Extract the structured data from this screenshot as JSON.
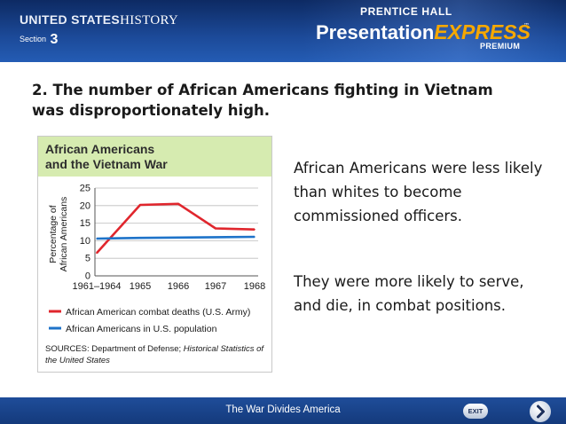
{
  "header": {
    "brand_part1": "UNITED STATES",
    "brand_part2": "HISTORY",
    "section_label": "Section",
    "section_number": "3",
    "publisher": "PRENTICE HALL",
    "product_main": "Presentation",
    "product_express": "EXPRESS",
    "trademark": "™",
    "premium": "PREMIUM"
  },
  "slide": {
    "title": "2. The number of African Americans fighting in Vietnam was disproportionately high.",
    "paragraph1": "African Americans were less likely than whites to become commissioned officers.",
    "paragraph2": "They were more likely to serve, and die, in combat positions."
  },
  "footer": {
    "title": "The War Divides America",
    "exit_label": "EXIT",
    "next_icon": "chevron-right-icon"
  },
  "chart_data": {
    "type": "line",
    "title": "African Americans and the Vietnam War",
    "title_lines": [
      "African Americans",
      "and the Vietnam War"
    ],
    "ylabel": "Percentage of African Americans",
    "ylabel_lines": [
      "Percentage of",
      "African Americans"
    ],
    "xlabel": "",
    "categories": [
      "1961–1964",
      "1965",
      "1966",
      "1967",
      "1968"
    ],
    "yticks": [
      0,
      5,
      10,
      15,
      20,
      25
    ],
    "ylim": [
      0,
      25
    ],
    "series": [
      {
        "name": "African American combat deaths (U.S. Army)",
        "color": "#e0262d",
        "values": [
          6.5,
          20.2,
          20.5,
          13.5,
          13.2
        ]
      },
      {
        "name": "African Americans in U.S. population",
        "color": "#1e73c9",
        "values": [
          10.6,
          10.8,
          10.9,
          11.0,
          11.1
        ]
      }
    ],
    "grid": "horizontal",
    "source_label": "SOURCES:",
    "source_plain": "Department of Defense;",
    "source_italic": "Historical Statistics of the United States",
    "colors": {
      "title_band": "#d6ebb0",
      "title_text": "#2d2d2d"
    }
  }
}
